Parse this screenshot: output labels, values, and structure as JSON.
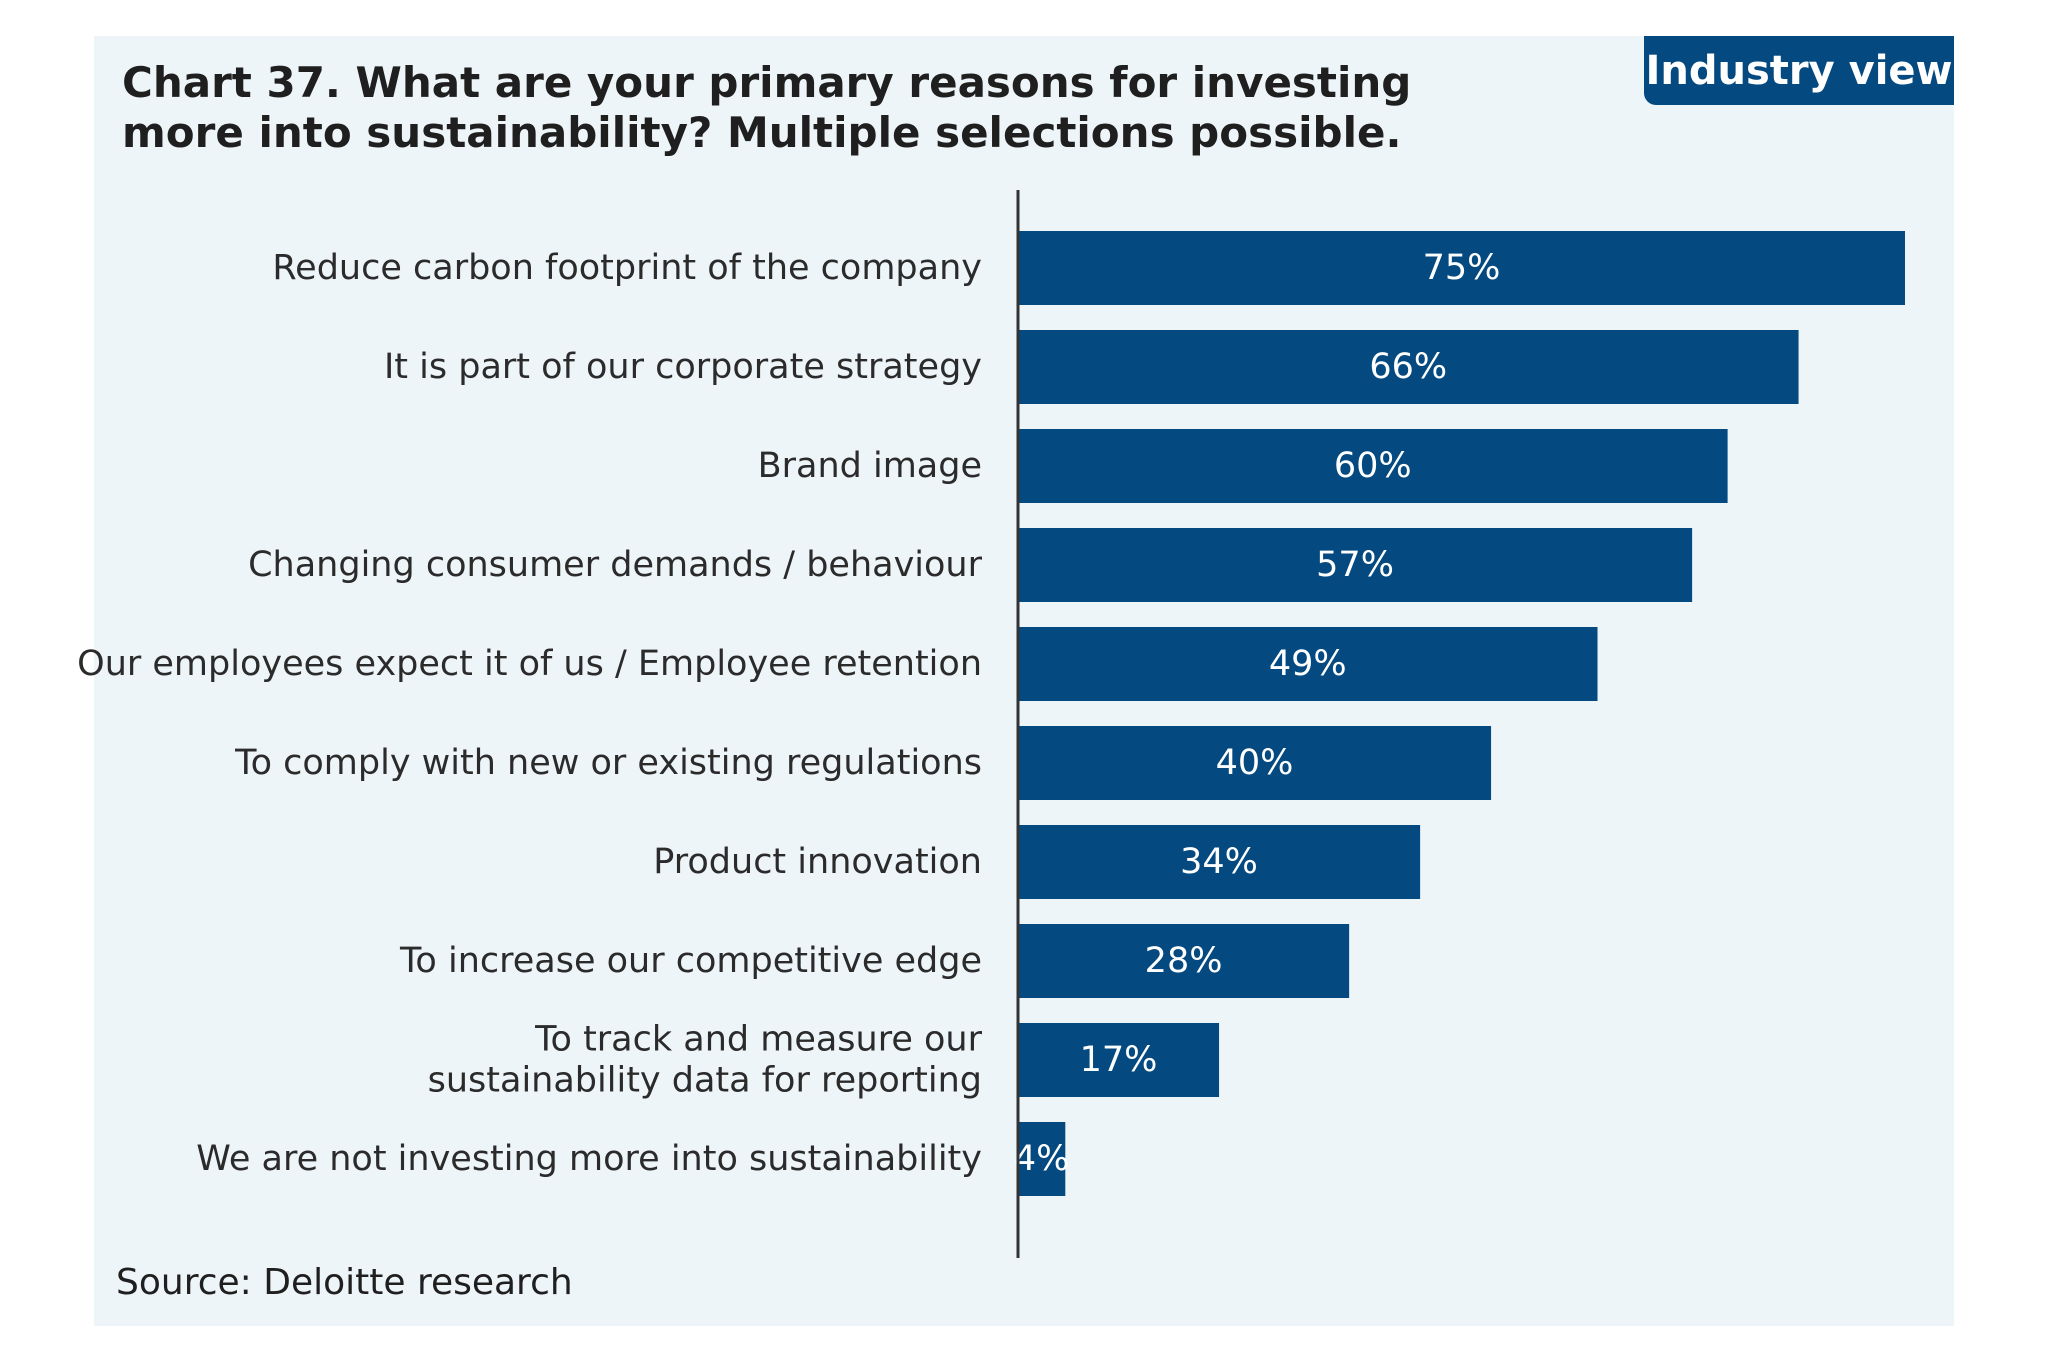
{
  "header": {
    "title": "Chart 37. What are your primary reasons for investing more into sustainability? Multiple selections possible.",
    "tag": "Industry view"
  },
  "footer": {
    "source": "Source: Deloitte research"
  },
  "colors": {
    "bar": "#044a80",
    "panel": "#eef5f9",
    "tag": "#044a80"
  },
  "chart_data": {
    "type": "bar",
    "orientation": "horizontal",
    "title": "Chart 37. What are your primary reasons for investing more into sustainability? Multiple selections possible.",
    "categories": [
      "Reduce carbon footprint of the company",
      "It is part of our corporate strategy",
      "Brand image",
      "Changing consumer demands / behaviour",
      "Our employees expect it of us / Employee retention",
      "To comply with new or existing regulations",
      "Product innovation",
      "To increase our competitive edge",
      "To track and measure our\nsustainability data for reporting",
      "We are not investing more into sustainability"
    ],
    "values": [
      75,
      66,
      60,
      57,
      49,
      40,
      34,
      28,
      17,
      4
    ],
    "value_labels": [
      "75%",
      "66%",
      "60%",
      "57%",
      "49%",
      "40%",
      "34%",
      "28%",
      "17%",
      "4%"
    ],
    "unit": "%",
    "xlim": [
      0,
      75
    ],
    "grid": false,
    "legend": "none"
  }
}
